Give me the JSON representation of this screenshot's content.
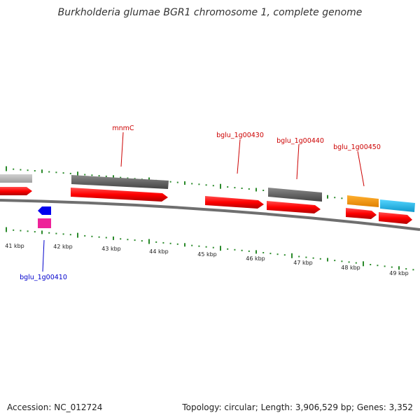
{
  "title": "Burkholderia glumae BGR1 chromosome 1, complete genome",
  "accession": "Accession: NC_012724",
  "summary": "Topology: circular; Length: 3,906,529 bp; Genes: 3,352",
  "colors": {
    "backbone": "#777777",
    "tick": "#2a8a2a",
    "label_red": "#cc0000",
    "label_blue": "#0000cc",
    "red_gene": "#ff0000",
    "grey_gene": "#666666",
    "light_grey_gene": "#bbbbbb",
    "blue_gene": "#0000ff",
    "pink_gene": "#ee2299",
    "orange_gene": "#ff9900",
    "cyan_gene": "#22bbee"
  },
  "kbp_labels": [
    "41 kbp",
    "42 kbp",
    "43 kbp",
    "44 kbp",
    "45 kbp",
    "46 kbp",
    "47 kbp",
    "48 kbp",
    "49 kbp"
  ],
  "gene_labels": [
    {
      "text": "mnmC",
      "color": "red"
    },
    {
      "text": "bglu_1g00430",
      "color": "red"
    },
    {
      "text": "bglu_1g00440",
      "color": "red"
    },
    {
      "text": "bglu_1g00450",
      "color": "red"
    },
    {
      "text": "bglu_1g00410",
      "color": "blue"
    }
  ]
}
